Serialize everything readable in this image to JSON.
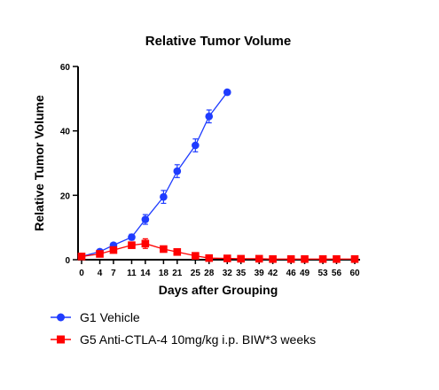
{
  "chart_data": {
    "type": "line",
    "title": "Relative Tumor Volume",
    "xlabel": "Days after Grouping",
    "ylabel": "Relative Tumor Volume",
    "xlim": [
      0,
      60
    ],
    "ylim": [
      0,
      60
    ],
    "x_ticks": [
      0,
      4,
      7,
      11,
      14,
      18,
      21,
      25,
      28,
      32,
      35,
      39,
      42,
      46,
      49,
      53,
      56,
      60
    ],
    "y_ticks": [
      0,
      20,
      40,
      60
    ],
    "grid": false,
    "legend_position": "bottom",
    "series": [
      {
        "name": "G1 Vehicle",
        "color": "#1f3cff",
        "marker": "circle",
        "x": [
          0,
          4,
          7,
          11,
          14,
          18,
          21,
          25,
          28,
          32
        ],
        "values": [
          1.0,
          2.5,
          4.5,
          7.0,
          12.5,
          19.5,
          27.5,
          35.5,
          44.5,
          52.0
        ],
        "errors": [
          0.2,
          0.4,
          0.6,
          0.9,
          1.5,
          2.0,
          2.0,
          2.0,
          2.0,
          0.5
        ]
      },
      {
        "name": "G5 Anti-CTLA-4 10mg/kg i.p. BIW*3 weeks",
        "color": "#ff0000",
        "marker": "square",
        "x": [
          0,
          4,
          7,
          11,
          14,
          18,
          21,
          25,
          28,
          32,
          35,
          39,
          42,
          46,
          49,
          53,
          56,
          60
        ],
        "values": [
          1.0,
          1.8,
          3.0,
          4.5,
          5.0,
          3.3,
          2.4,
          1.2,
          0.5,
          0.4,
          0.3,
          0.3,
          0.2,
          0.2,
          0.2,
          0.2,
          0.2,
          0.2
        ],
        "errors": [
          0.2,
          0.4,
          0.6,
          0.8,
          1.5,
          0.8,
          0.6,
          0.4,
          0.2,
          0.1,
          0.1,
          0.1,
          0.1,
          0.1,
          0.1,
          0.1,
          0.1,
          0.1
        ]
      }
    ]
  }
}
